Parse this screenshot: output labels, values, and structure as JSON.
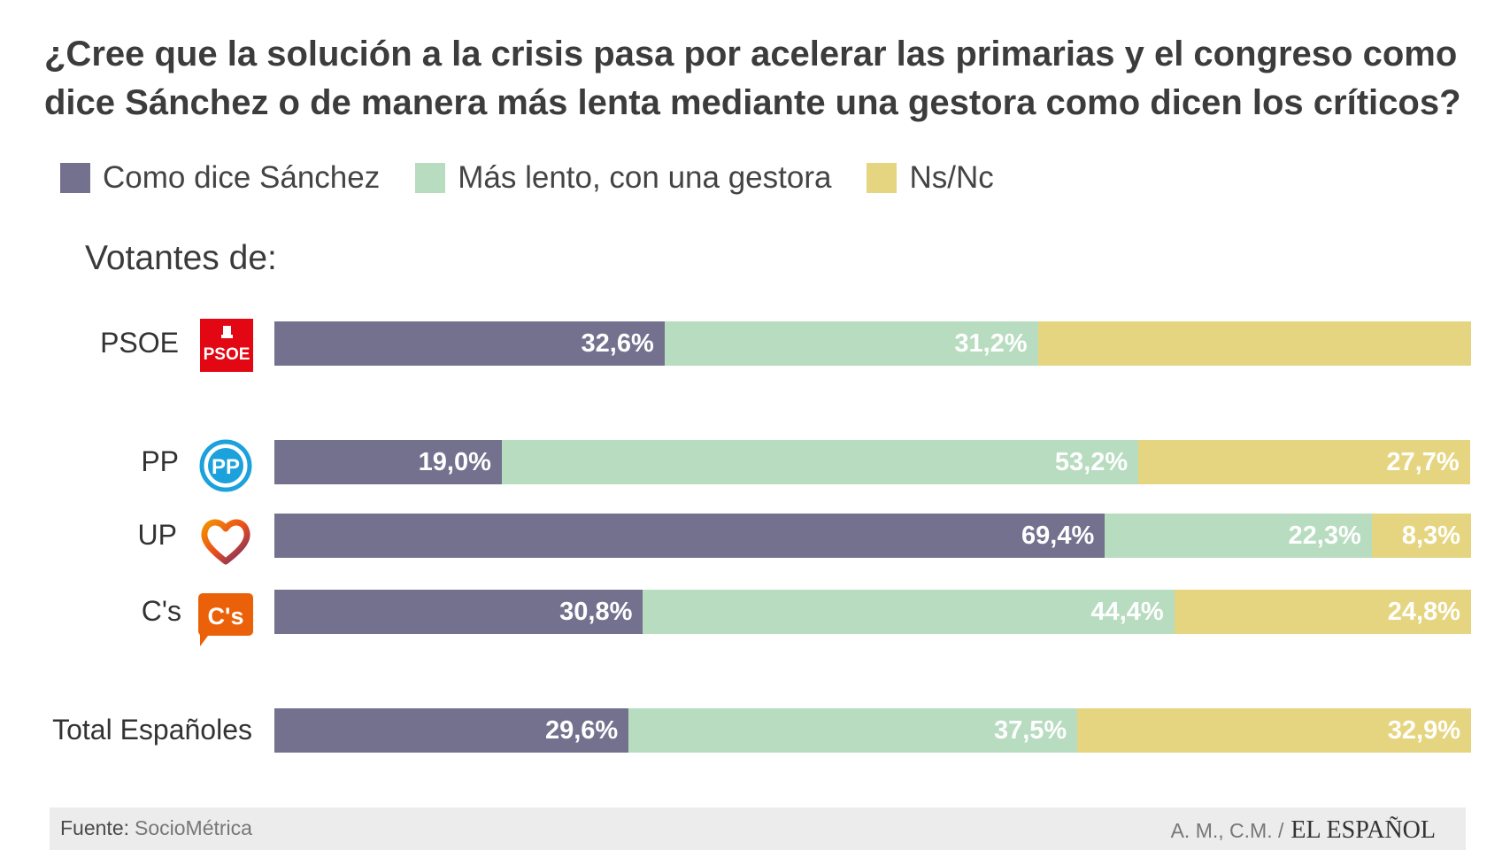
{
  "chart_data": {
    "type": "bar",
    "orientation": "horizontal",
    "stacked": true,
    "title": "¿Cree que la solución a la crisis pasa por acelerar las primarias y el congreso como dice Sánchez o de manera más lenta mediante una gestora como dicen los críticos?",
    "subtitle": "Votantes de:",
    "legend": [
      {
        "name": "Como dice Sánchez",
        "color": "#74718f"
      },
      {
        "name": "Más lento, con una gestora",
        "color": "#b7dcc0"
      },
      {
        "name": "Ns/Nc",
        "color": "#e6d580"
      }
    ],
    "categories": [
      "PSOE",
      "PP",
      "UP",
      "C's",
      "Total Españoles"
    ],
    "series": [
      {
        "name": "Como dice Sánchez",
        "values": [
          32.6,
          19.0,
          69.4,
          30.8,
          29.6
        ],
        "labels": [
          "32,6%",
          "19,0%",
          "69,4%",
          "30,8%",
          "29,6%"
        ]
      },
      {
        "name": "Más lento, con una gestora",
        "values": [
          31.2,
          53.2,
          22.3,
          44.4,
          37.5
        ],
        "labels": [
          "31,2%",
          "53,2%",
          "22,3%",
          "44,4%",
          "37,5%"
        ]
      },
      {
        "name": "Ns/Nc",
        "values": [
          36.2,
          27.7,
          8.3,
          24.8,
          32.9
        ],
        "labels": [
          "",
          "27,7%",
          "8,3%",
          "24,8%",
          "32,9%"
        ]
      }
    ],
    "xlim": [
      0,
      100
    ]
  },
  "logos": {
    "psoe": "PSOE",
    "pp": "PP",
    "cs": "C's"
  },
  "footer": {
    "source_label": "Fuente:",
    "source": "SocioMétrica",
    "authors": "A. M., C.M. /",
    "brand": "EL ESPAÑOL"
  }
}
